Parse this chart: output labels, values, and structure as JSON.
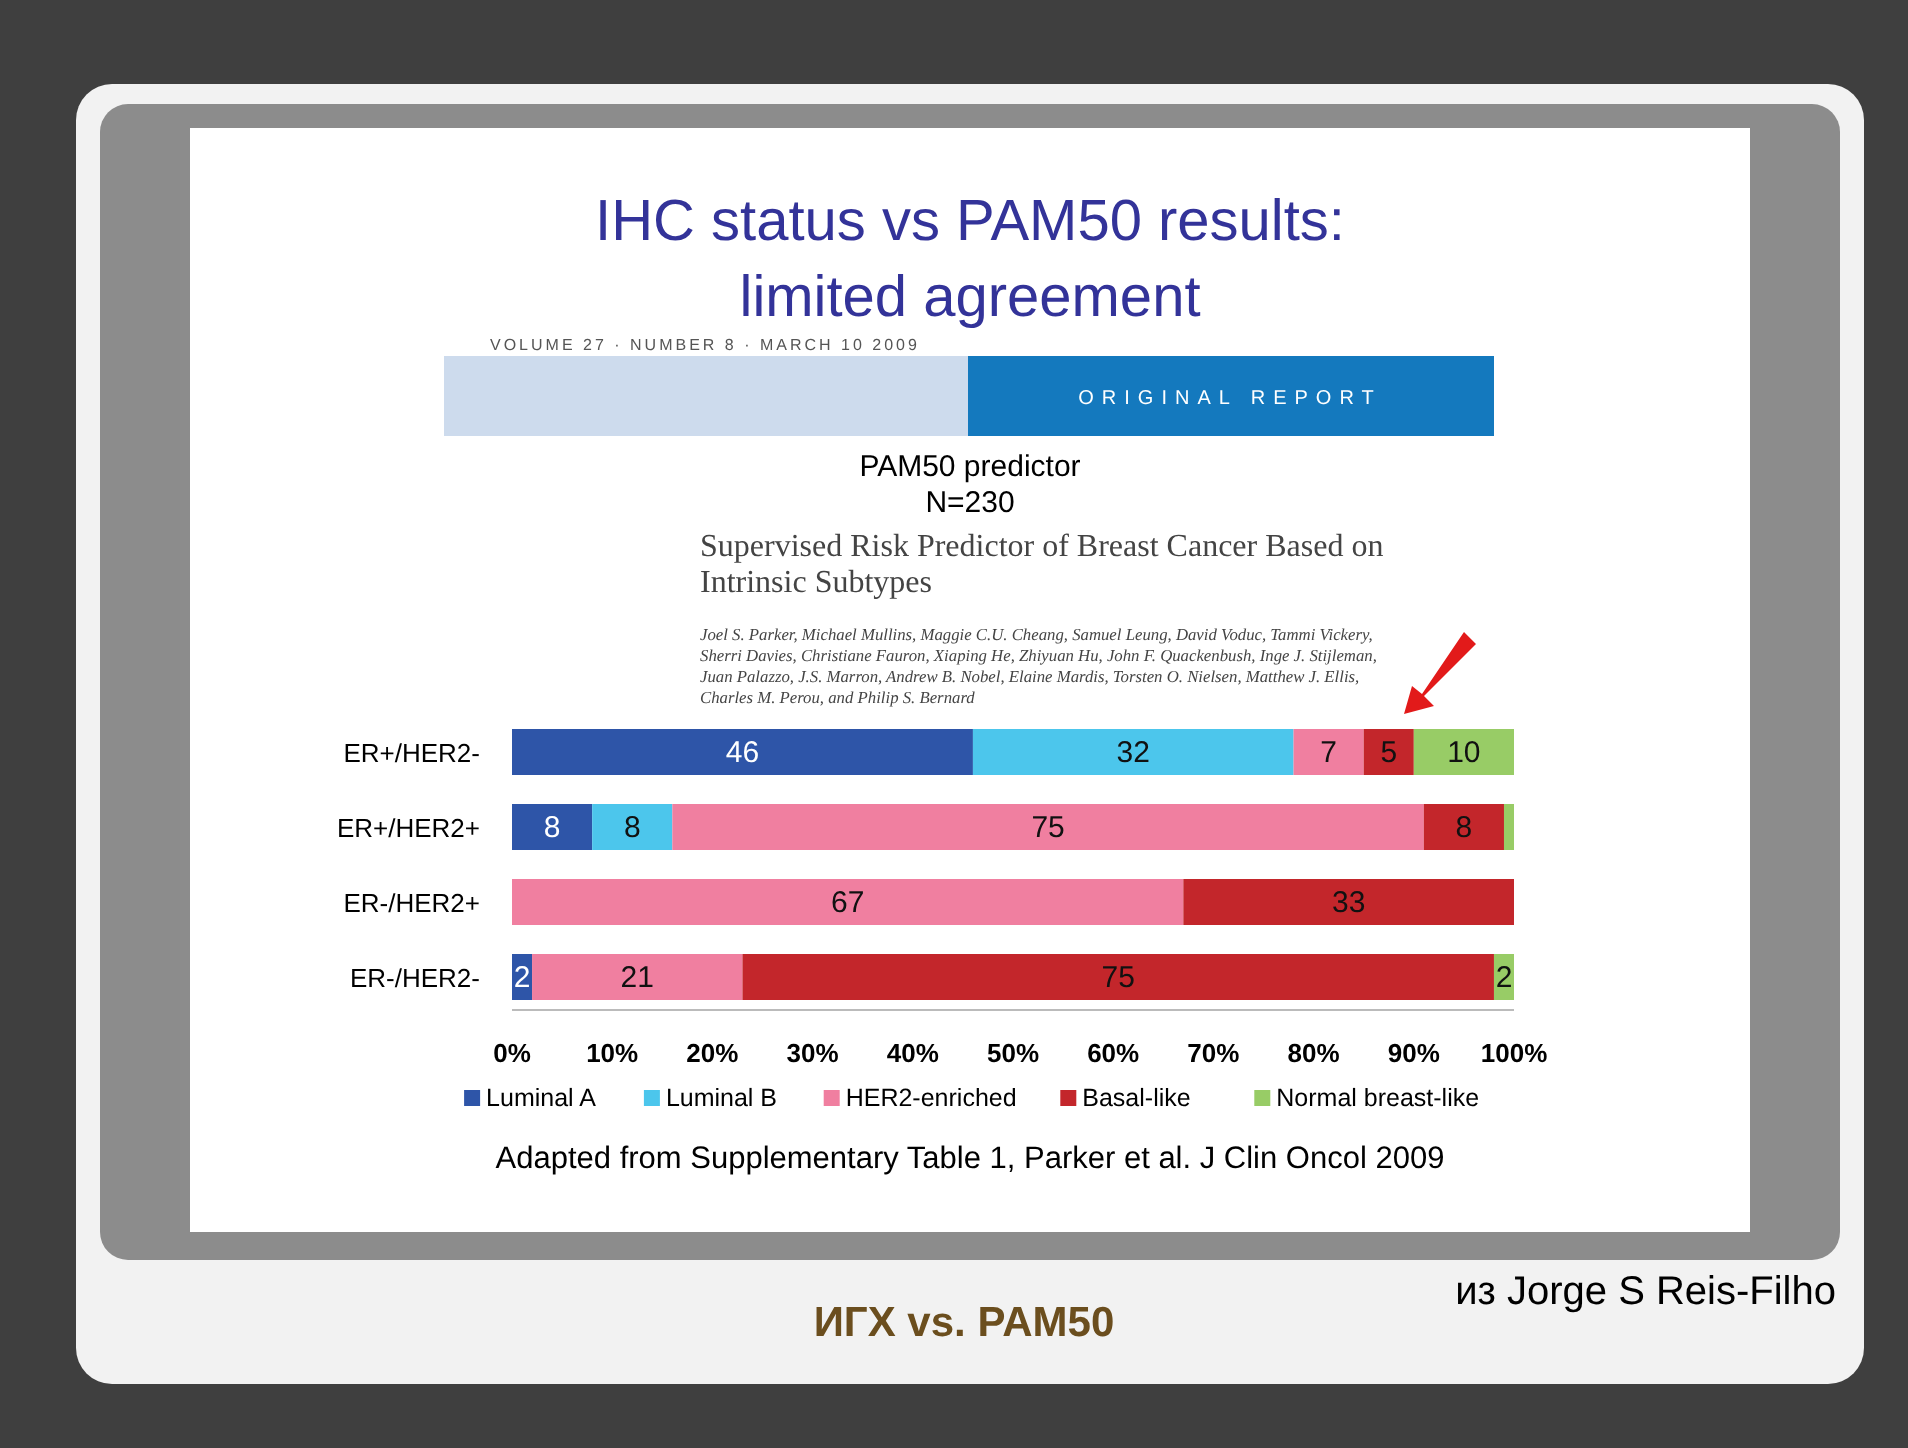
{
  "chart_data": {
    "type": "bar",
    "orientation": "horizontal",
    "stacked": true,
    "title": "IHC status vs PAM50 results: limited agreement",
    "subtitle": "PAM50 predictor\nN=230",
    "categories": [
      "ER+/HER2-",
      "ER+/HER2+",
      "ER-/HER2+",
      "ER-/HER2-"
    ],
    "series": [
      {
        "name": "Luminal A",
        "color": "#2e55a8",
        "values": [
          46,
          8,
          null,
          2
        ],
        "value_labels": [
          "46",
          "8",
          null,
          "2"
        ]
      },
      {
        "name": "Luminal B",
        "color": "#4cc6ec",
        "values": [
          32,
          8,
          null,
          null
        ],
        "value_labels": [
          "32",
          "8",
          null,
          null
        ]
      },
      {
        "name": "HER2-enriched",
        "color": "#f07fa0",
        "values": [
          7,
          75,
          67,
          21
        ],
        "value_labels": [
          "7",
          "75",
          "67",
          "21"
        ]
      },
      {
        "name": "Basal-like",
        "color": "#c3262b",
        "values": [
          5,
          8,
          33,
          75
        ],
        "value_labels": [
          "5",
          "8",
          "33",
          "75"
        ]
      },
      {
        "name": "Normal breast-like",
        "color": "#98cc66",
        "values": [
          10,
          1,
          null,
          2
        ],
        "value_labels": [
          "10",
          null,
          null,
          "2"
        ]
      }
    ],
    "xlim": [
      0,
      100
    ],
    "xticks": [
      {
        "value": 0,
        "label": "0%"
      },
      {
        "value": 10,
        "label": "10%"
      },
      {
        "value": 20,
        "label": "20%"
      },
      {
        "value": 30,
        "label": "30%"
      },
      {
        "value": 40,
        "label": "40%"
      },
      {
        "value": 50,
        "label": "50%"
      },
      {
        "value": 60,
        "label": "60%"
      },
      {
        "value": 70,
        "label": "70%"
      },
      {
        "value": 80,
        "label": "80%"
      },
      {
        "value": 90,
        "label": "90%"
      },
      {
        "value": 100,
        "label": "100%"
      }
    ],
    "legend": "bottom",
    "annotations": [
      "VOLUME 27 · NUMBER 8 · MARCH 10 2009",
      "ORIGINAL REPORT",
      "Supervised Risk Predictor of Breast Cancer Based on Intrinsic Subtypes",
      "Joel S. Parker, Michael Mullins, Maggie C.U. Cheang, Samuel Leung, David Voduc, Tammi Vickery, Sherri Davies, Christiane Fauron, Xiaping He, Zhiyuan Hu, John F. Quackenbush, Inge J. Stijleman, Juan Palazzo, J.S. Marron, Andrew B. Nobel, Elaine Mardis, Torsten O. Nielsen, Matthew J. Ellis, Charles M. Perou, and Philip S. Bernard",
      "Adapted from Supplementary Table 1, Parker et al. J Clin Oncol 2009",
      "из Jorge S Reis-Filho",
      "ИГХ vs. PAM50"
    ]
  }
}
